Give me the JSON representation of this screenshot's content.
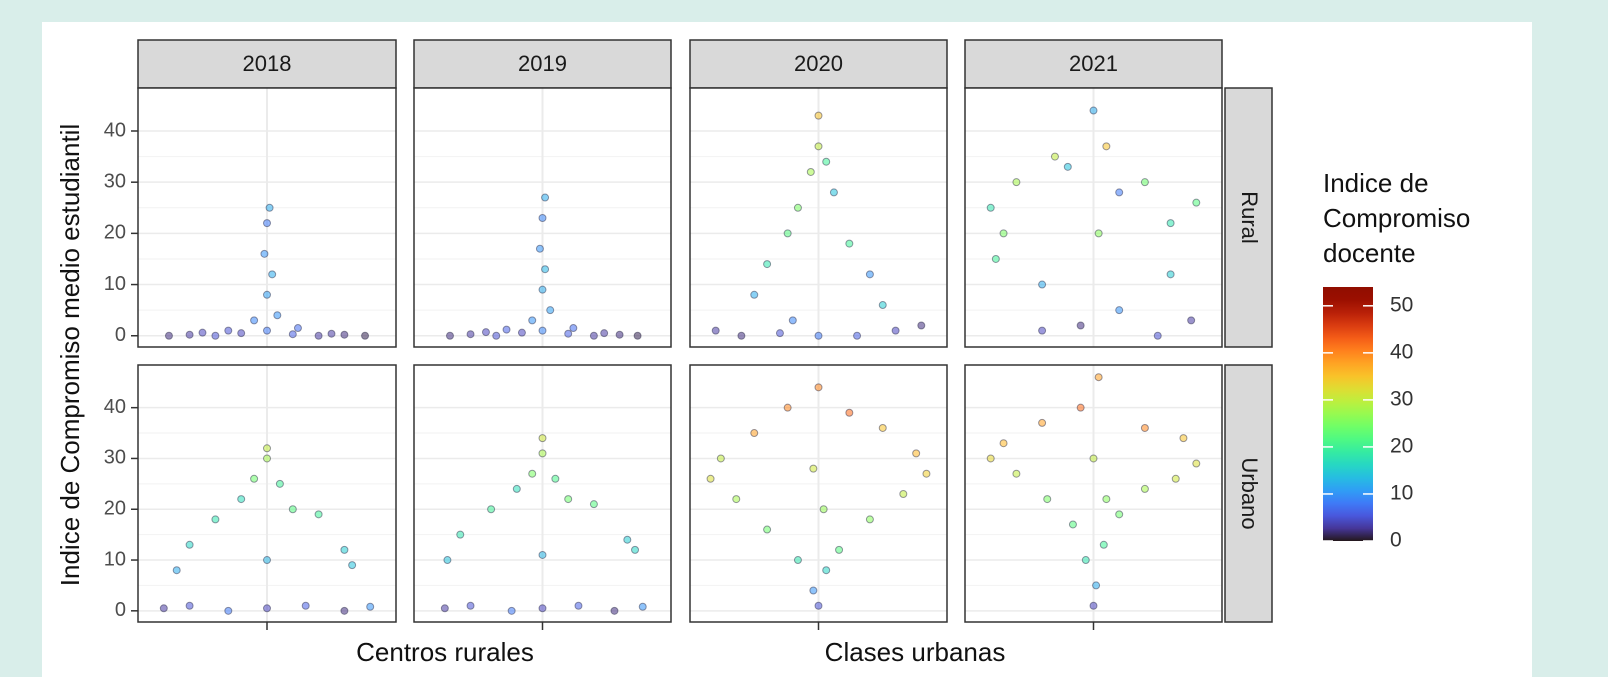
{
  "chart_data": {
    "type": "scatter",
    "y_label": "Indice de Compromiso medio estudiantil",
    "x_labels": [
      "Centros rurales",
      "Clases urbanas"
    ],
    "columns": [
      "2018",
      "2019",
      "2020",
      "2021"
    ],
    "rows": [
      "Rural",
      "Urbano"
    ],
    "xlim": [
      -0.5,
      0.5
    ],
    "ylim": [
      -2.2,
      48.4
    ],
    "yticks": [
      0,
      10,
      20,
      30,
      40
    ],
    "grid": true,
    "color_label": "Indice de Compromiso docente",
    "clim": [
      0,
      54
    ],
    "cticks": [
      0,
      10,
      20,
      30,
      40,
      50
    ],
    "colormap": "turbo",
    "panels": [
      [
        {
          "x": [
            -0.38,
            -0.3,
            -0.2,
            -0.1,
            0,
            0.1,
            0.2,
            0.3,
            0.38,
            -0.05,
            0.04,
            0,
            0.02,
            -0.01,
            0,
            0.01,
            -0.15,
            0.12,
            0.25,
            -0.25
          ],
          "y": [
            0,
            0.2,
            0,
            0.5,
            1,
            0.3,
            0,
            0.2,
            0,
            3,
            4,
            8,
            12,
            16,
            22,
            25,
            1,
            1.5,
            0.4,
            0.6
          ],
          "c": [
            2,
            3,
            5,
            4,
            8,
            6,
            3,
            2,
            1,
            9,
            10,
            11,
            12,
            10,
            8,
            12,
            5,
            7,
            3,
            4
          ]
        },
        {
          "x": [
            -0.36,
            -0.28,
            -0.18,
            -0.08,
            0,
            0.1,
            0.2,
            0.3,
            0.37,
            -0.04,
            0.03,
            0,
            0.01,
            -0.01,
            0,
            0.01,
            -0.14,
            0.12,
            0.24,
            -0.22
          ],
          "y": [
            0,
            0.3,
            0,
            0.6,
            1,
            0.4,
            0,
            0.2,
            0,
            3,
            5,
            9,
            13,
            17,
            23,
            27,
            1.2,
            1.5,
            0.5,
            0.7
          ],
          "c": [
            2,
            3,
            5,
            4,
            9,
            6,
            3,
            2,
            1,
            10,
            11,
            12,
            13,
            10,
            9,
            12,
            6,
            7,
            3,
            4
          ]
        },
        {
          "x": [
            -0.4,
            -0.3,
            -0.15,
            0,
            0.15,
            0.3,
            0.4,
            -0.25,
            0.25,
            -0.2,
            0.2,
            -0.12,
            0.12,
            -0.08,
            0.06,
            -0.03,
            0.03,
            0,
            0,
            -0.1
          ],
          "y": [
            1,
            0,
            0.5,
            0,
            0,
            1,
            2,
            8,
            6,
            14,
            12,
            20,
            18,
            25,
            28,
            32,
            34,
            37,
            43,
            3
          ],
          "c": [
            3,
            2,
            5,
            8,
            6,
            4,
            2,
            12,
            15,
            18,
            10,
            22,
            20,
            25,
            14,
            28,
            20,
            30,
            35,
            9
          ]
        },
        {
          "x": [
            -0.4,
            -0.35,
            -0.2,
            -0.05,
            0.1,
            0.25,
            0.38,
            0.4,
            -0.38,
            0.3,
            -0.3,
            0.2,
            -0.15,
            0.05,
            -0.1,
            0.1,
            0,
            0.02,
            -0.2,
            0.3
          ],
          "y": [
            25,
            20,
            10,
            2,
            5,
            0,
            3,
            26,
            15,
            12,
            30,
            30,
            35,
            37,
            33,
            28,
            44,
            20,
            1,
            22
          ],
          "c": [
            18,
            25,
            12,
            2,
            10,
            5,
            3,
            22,
            20,
            15,
            28,
            24,
            30,
            35,
            14,
            8,
            12,
            26,
            4,
            18
          ]
        }
      ],
      [
        {
          "x": [
            -0.4,
            -0.3,
            -0.15,
            0,
            0.15,
            0.3,
            0.4,
            -0.35,
            0.33,
            -0.3,
            0.3,
            -0.2,
            0.2,
            -0.1,
            0.1,
            0,
            -0.05,
            0.05,
            0,
            0
          ],
          "y": [
            0.5,
            1,
            0,
            0.5,
            1,
            0,
            0.8,
            8,
            9,
            13,
            12,
            18,
            19,
            22,
            20,
            10,
            26,
            25,
            30,
            32
          ],
          "c": [
            3,
            5,
            8,
            4,
            6,
            2,
            10,
            12,
            14,
            16,
            15,
            18,
            20,
            17,
            22,
            13,
            24,
            20,
            28,
            30
          ]
        },
        {
          "x": [
            -0.38,
            -0.28,
            -0.12,
            0,
            0.14,
            0.28,
            0.39,
            -0.37,
            0.36,
            -0.32,
            0.33,
            -0.2,
            0.2,
            -0.1,
            0.1,
            0,
            -0.04,
            0.05,
            0,
            0
          ],
          "y": [
            0.5,
            1,
            0,
            0.5,
            1,
            0,
            0.8,
            10,
            12,
            15,
            14,
            20,
            21,
            24,
            22,
            11,
            27,
            26,
            31,
            34
          ],
          "c": [
            3,
            5,
            8,
            4,
            6,
            2,
            10,
            14,
            16,
            18,
            15,
            20,
            22,
            17,
            24,
            13,
            25,
            21,
            28,
            31
          ]
        },
        {
          "x": [
            0,
            -0.02,
            0.03,
            -0.08,
            0.08,
            -0.2,
            0.2,
            -0.32,
            0.33,
            -0.42,
            0.42,
            -0.38,
            0.38,
            -0.25,
            0.25,
            -0.12,
            0.12,
            0,
            -0.02,
            0.02
          ],
          "y": [
            1,
            4,
            8,
            10,
            12,
            16,
            18,
            22,
            23,
            26,
            27,
            30,
            31,
            35,
            36,
            40,
            39,
            44,
            28,
            20
          ],
          "c": [
            5,
            10,
            16,
            18,
            22,
            24,
            26,
            28,
            30,
            32,
            34,
            30,
            36,
            38,
            35,
            40,
            42,
            40,
            31,
            27
          ]
        },
        {
          "x": [
            0,
            0.01,
            -0.03,
            0.04,
            -0.08,
            0.1,
            -0.18,
            0.2,
            -0.3,
            0.32,
            -0.4,
            0.4,
            -0.35,
            0.35,
            -0.2,
            0.2,
            -0.05,
            0.02,
            0,
            0.05
          ],
          "y": [
            1,
            5,
            10,
            13,
            17,
            19,
            22,
            24,
            27,
            26,
            30,
            29,
            33,
            34,
            37,
            36,
            40,
            46,
            30,
            22
          ],
          "c": [
            4,
            12,
            18,
            20,
            22,
            24,
            25,
            28,
            30,
            31,
            33,
            32,
            36,
            35,
            38,
            40,
            42,
            38,
            30,
            26
          ]
        }
      ]
    ]
  }
}
